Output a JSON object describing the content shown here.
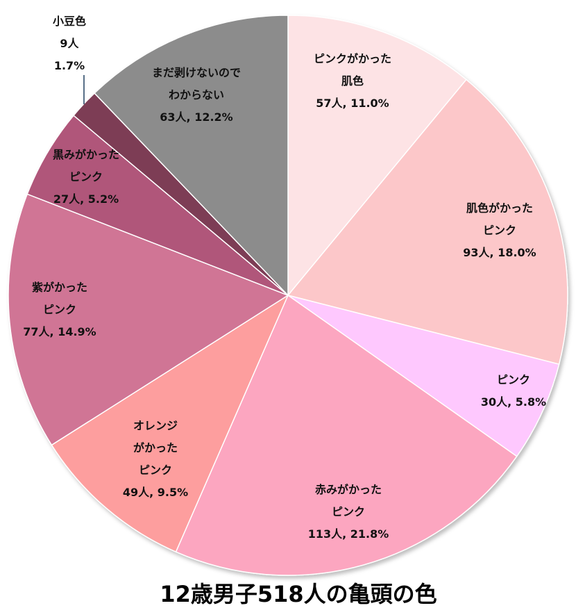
{
  "chart_data": {
    "type": "pie",
    "title": "12歳男子518人の亀頭の色",
    "start_angle_deg": 0,
    "direction": "clockwise",
    "slices": [
      {
        "name": "ピンクがかった肌色",
        "value": 57,
        "percent": 11.0,
        "color": "#FDE3E5",
        "label_lines": [
          "ピンクがかった",
          "肌色",
          "57人, 11.0%"
        ]
      },
      {
        "name": "肌色がかったピンク",
        "value": 93,
        "percent": 18.0,
        "color": "#FCC7C9",
        "label_lines": [
          "肌色がかった",
          "ピンク",
          "93人, 18.0%"
        ]
      },
      {
        "name": "ピンク",
        "value": 30,
        "percent": 5.8,
        "color": "#FEC8FE",
        "label_lines": [
          "ピンク",
          "30人, 5.8%"
        ]
      },
      {
        "name": "赤みがかったピンク",
        "value": 113,
        "percent": 21.8,
        "color": "#FCA6C0",
        "label_lines": [
          "赤みがかった",
          "ピンク",
          "113人, 21.8%"
        ]
      },
      {
        "name": "オレンジがかったピンク",
        "value": 49,
        "percent": 9.5,
        "color": "#FD9E9E",
        "label_lines": [
          "オレンジ",
          "がかった",
          "ピンク",
          "49人, 9.5%"
        ]
      },
      {
        "name": "紫がかったピンク",
        "value": 77,
        "percent": 14.9,
        "color": "#D07495",
        "label_lines": [
          "紫がかった",
          "ピンク",
          "77人, 14.9%"
        ]
      },
      {
        "name": "黒みがかったピンク",
        "value": 27,
        "percent": 5.2,
        "color": "#B0567A",
        "label_lines": [
          "黒みがかった",
          "ピンク",
          "27人, 5.2%"
        ]
      },
      {
        "name": "小豆色",
        "value": 9,
        "percent": 1.7,
        "color": "#7D3E55",
        "label_lines": [
          "小豆色",
          "9人",
          "1.7%"
        ]
      },
      {
        "name": "まだ剥けないのでわからない",
        "value": 63,
        "percent": 12.2,
        "color": "#8C8C8C",
        "label_lines": [
          "まだ剥けないので",
          "わからない",
          "63人, 12.2%"
        ]
      }
    ]
  }
}
